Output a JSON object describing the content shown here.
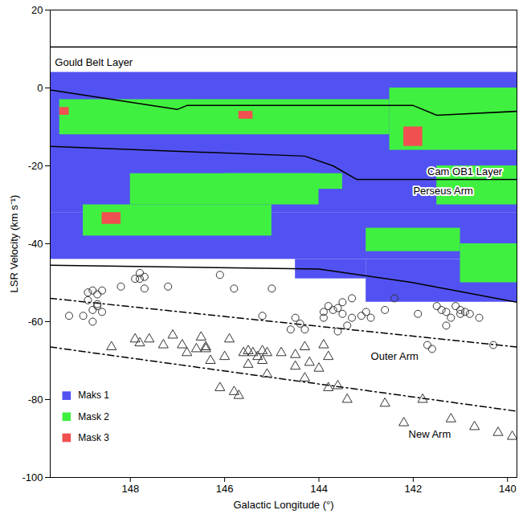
{
  "chart_data": {
    "type": "scatter",
    "x_label": "Galactic Longitude (°)",
    "y_label": "LSR Velocity (km s⁻¹)",
    "xlim": [
      149.7,
      139.8
    ],
    "ylim": [
      -100,
      20
    ],
    "xticks": [
      148,
      146,
      144,
      142,
      140
    ],
    "yticks": [
      -100,
      -80,
      -60,
      -40,
      -20,
      0,
      20
    ],
    "legend": "lower left",
    "regions": [
      {
        "name": "Maks 1",
        "color": "#5252f2",
        "rects": [
          [
            139.8,
            149.7,
            -32,
            4
          ],
          [
            139.8,
            149.7,
            -44,
            -32
          ],
          [
            139.8,
            143.0,
            -55,
            -44
          ],
          [
            143.0,
            144.5,
            -49,
            -44
          ]
        ]
      },
      {
        "name": "Mask 2",
        "color": "#40f040",
        "rects": [
          [
            142.5,
            149.5,
            -12,
            -3
          ],
          [
            139.8,
            142.5,
            -16,
            0
          ],
          [
            144.0,
            148.0,
            -30,
            -22
          ],
          [
            143.5,
            146.0,
            -26,
            -22
          ],
          [
            145.0,
            149.0,
            -38,
            -30
          ],
          [
            141.0,
            143.0,
            -42,
            -36
          ],
          [
            139.8,
            141.0,
            -50,
            -40
          ],
          [
            139.8,
            141.5,
            -30,
            -20
          ]
        ]
      },
      {
        "name": "Mask 3",
        "color": "#f05050",
        "rects": [
          [
            141.8,
            142.2,
            -15,
            -10
          ],
          [
            148.2,
            148.6,
            -35,
            -32
          ],
          [
            149.3,
            149.5,
            -7,
            -5
          ],
          [
            145.4,
            145.7,
            -8,
            -6
          ]
        ]
      }
    ],
    "boundaries": [
      {
        "line_style": "solid",
        "points": [
          [
            149.7,
            10.5
          ],
          [
            139.8,
            10.5
          ]
        ]
      },
      {
        "line_style": "solid",
        "points": [
          [
            149.7,
            -0.5
          ],
          [
            147.0,
            -5.5
          ],
          [
            146.8,
            -4.5
          ],
          [
            142.0,
            -4.5
          ],
          [
            141.5,
            -7
          ],
          [
            139.8,
            -6
          ]
        ]
      },
      {
        "line_style": "solid",
        "points": [
          [
            149.7,
            -15
          ],
          [
            144.3,
            -17.5
          ],
          [
            143.7,
            -20
          ],
          [
            143.2,
            -23.5
          ],
          [
            139.8,
            -23.5
          ]
        ]
      },
      {
        "line_style": "solid",
        "points": [
          [
            149.7,
            -45.5
          ],
          [
            144.0,
            -46.5
          ],
          [
            142.0,
            -50
          ],
          [
            139.8,
            -55
          ]
        ]
      },
      {
        "line_style": "dashdot",
        "points": [
          [
            149.7,
            -54
          ],
          [
            139.8,
            -66.5
          ]
        ]
      },
      {
        "line_style": "dashdot",
        "points": [
          [
            149.7,
            -66.5
          ],
          [
            139.8,
            -83
          ]
        ]
      }
    ],
    "annotations": [
      {
        "text": "Gould Belt Layer",
        "x": 149.6,
        "y": 6.5
      },
      {
        "text": "Cam OB1 Layer",
        "x": 141.7,
        "y": -21.5
      },
      {
        "text": "Perseus Arm",
        "x": 142.0,
        "y": -26.5
      },
      {
        "text": "Outer Arm",
        "x": 142.9,
        "y": -69
      },
      {
        "text": "New Arm",
        "x": 142.1,
        "y": -89
      }
    ],
    "series": [
      {
        "marker": "circle",
        "color": "#333333",
        "x": [
          149.3,
          149.0,
          148.9,
          148.8,
          148.6,
          148.7,
          148.8,
          148.9,
          148.7,
          148.8,
          148.6,
          148.7,
          147.8,
          147.7,
          147.8,
          147.9,
          148.2,
          147.7,
          147.2,
          146.1,
          145.8,
          145.0,
          145.2,
          144.5,
          144.4,
          144.6,
          143.9,
          143.9,
          143.7,
          143.8,
          143.5,
          143.6,
          143.5,
          143.3,
          143.0,
          143.3,
          143.1,
          143.4,
          142.9,
          142.6,
          142.4,
          141.9,
          141.5,
          141.4,
          141.3,
          141.2,
          141.1,
          141.0,
          140.9,
          141.0,
          140.8,
          140.6,
          141.3,
          141.7,
          141.6,
          140.3,
          143.6,
          144.3
        ],
        "y": [
          -58.5,
          -58.5,
          -52.5,
          -52,
          -52,
          -53,
          -60,
          -54.5,
          -55.5,
          -57,
          -57.5,
          -56,
          -47.5,
          -48.5,
          -49,
          -49,
          -51,
          -51.5,
          -51,
          -48,
          -51.5,
          -51.5,
          -58.5,
          -59,
          -60.5,
          -62,
          -59,
          -57.5,
          -57,
          -56,
          -55,
          -56.5,
          -58,
          -59,
          -57.5,
          -54,
          -58.5,
          -61,
          -59,
          -57,
          -54,
          -58,
          -56,
          -57,
          -57.5,
          -59,
          -56,
          -57,
          -57.5,
          -58,
          -58,
          -59,
          -61,
          -66,
          -67,
          -66,
          -62.5,
          -62
        ]
      },
      {
        "marker": "triangle",
        "color": "#333333",
        "x": [
          148.4,
          147.9,
          147.8,
          147.6,
          147.3,
          147.1,
          146.9,
          146.8,
          146.6,
          146.5,
          146.4,
          146.4,
          146.0,
          145.9,
          145.6,
          145.5,
          145.4,
          145.3,
          145.2,
          145.1,
          145.2,
          145.5,
          145.1,
          144.8,
          144.5,
          144.3,
          144.2,
          143.9,
          143.8,
          144.5,
          146.1,
          145.8,
          145.7,
          144.0,
          143.8,
          143.6,
          143.4,
          144.3,
          142.6,
          141.8,
          142.2,
          141.2,
          140.7,
          140.2,
          139.9,
          146.3
        ],
        "y": [
          -66.5,
          -64.5,
          -65.5,
          -64.5,
          -66,
          -63.5,
          -66,
          -68,
          -67,
          -64,
          -66.5,
          -67,
          -69,
          -64.5,
          -68,
          -67.5,
          -68,
          -69,
          -67.5,
          -68,
          -70,
          -71,
          -73.5,
          -68,
          -68.5,
          -66.5,
          -70.5,
          -66,
          -69,
          -71.5,
          -77,
          -78,
          -79,
          -72,
          -77,
          -76.5,
          -80,
          -74.5,
          -81,
          -80,
          -86,
          -85,
          -87,
          -88.5,
          -89.5,
          -70
        ]
      }
    ]
  }
}
